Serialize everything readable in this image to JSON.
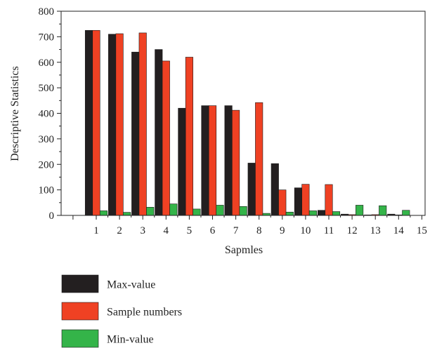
{
  "chart_data": {
    "type": "bar",
    "xlabel": "Sapmles",
    "ylabel": "Descriptive Statistics",
    "categories": [
      "1",
      "2",
      "3",
      "4",
      "5",
      "6",
      "7",
      "8",
      "9",
      "10",
      "11",
      "12",
      "13",
      "14",
      "15"
    ],
    "ylim": [
      0,
      800
    ],
    "yticks": [
      "0",
      "100",
      "200",
      "300",
      "400",
      "500",
      "600",
      "700",
      "800"
    ],
    "grid": false,
    "legend_position": "bottom-left",
    "series": [
      {
        "name": "Max-value",
        "color": "#231f20",
        "values": [
          725,
          710,
          640,
          650,
          420,
          430,
          430,
          205,
          203,
          108,
          20,
          5,
          2,
          5,
          0
        ]
      },
      {
        "name": "Sample numbers",
        "color": "#ef4123",
        "values": [
          725,
          712,
          715,
          605,
          620,
          430,
          412,
          442,
          100,
          122,
          121,
          3,
          3,
          2,
          0
        ]
      },
      {
        "name": "Min-value",
        "color": "#34b449",
        "values": [
          18,
          12,
          32,
          45,
          25,
          40,
          35,
          8,
          13,
          18,
          15,
          40,
          38,
          20,
          0
        ]
      }
    ]
  }
}
